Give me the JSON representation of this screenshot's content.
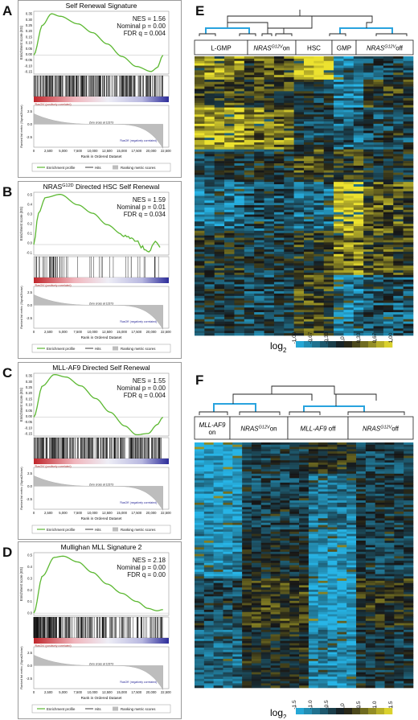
{
  "gsea_panels": [
    {
      "letter": "A",
      "title": "Self Renewal Signature",
      "title_sup": "",
      "title_rest": "",
      "stats": [
        "NES = 1.56",
        "Nominal p = 0.00",
        "FDR q = 0.004"
      ],
      "es_ticks": [
        "0.35",
        "0.30",
        "0.25",
        "0.20",
        "0.15",
        "0.10",
        "0.05",
        "0.00",
        "-0.05",
        "-0.10",
        "-0.15"
      ],
      "metric_ticks": [
        "2.5",
        "0.0",
        "-2.5"
      ],
      "x_ticks": [
        "0",
        "2,500",
        "5,000",
        "7,500",
        "10,000",
        "12,500",
        "15,000",
        "17,500",
        "20,000",
        "22,500"
      ],
      "pos_label": "'RasON' (positively correlated)",
      "neg_label": "'RasOff' (negatively correlated)",
      "zero_cross": "Zero cross at 12373",
      "xlabel": "Rank in Ordered Dataset",
      "es_ylabel": "Enrichment score (ES)",
      "metric_ylabel": "Ranked list metric (Signal2Noise)",
      "legend": [
        "Enrichment profile",
        "Hits",
        "Ranking metric scores"
      ],
      "es_curve": [
        [
          0,
          0
        ],
        [
          1500,
          0.24
        ],
        [
          3000,
          0.33
        ],
        [
          4500,
          0.31
        ],
        [
          7500,
          0.25
        ],
        [
          10000,
          0.18
        ],
        [
          12500,
          0.09
        ],
        [
          15000,
          -0.01
        ],
        [
          17500,
          -0.09
        ],
        [
          20000,
          -0.13
        ],
        [
          21000,
          -0.1
        ],
        [
          22000,
          0.0
        ]
      ],
      "ylim": [
        -0.15,
        0.35
      ],
      "hits": "dense"
    },
    {
      "letter": "B",
      "title": "NRAS",
      "title_sup": "G12D",
      "title_rest": " Directed HSC Self Renewal",
      "stats": [
        "NES = 1.59",
        "Nominal p = 0.01",
        "FDR q = 0.034"
      ],
      "es_ticks": [
        "0.5",
        "0.4",
        "0.3",
        "0.2",
        "0.1",
        "0.0",
        "-0.1"
      ],
      "metric_ticks": [
        "2.5",
        "0.0",
        "-2.5"
      ],
      "x_ticks": [
        "0",
        "2,500",
        "5,000",
        "7,500",
        "10,000",
        "12,500",
        "15,000",
        "17,500",
        "20,000",
        "22,500"
      ],
      "pos_label": "'RasON' (positively correlated)",
      "neg_label": "'RasOff' (negatively correlated)",
      "zero_cross": "Zero cross at 12373",
      "xlabel": "Rank in Ordered Dataset",
      "es_ylabel": "Enrichment score (ES)",
      "metric_ylabel": "Ranked list metric (Signal2Noise)",
      "legend": [
        "Enrichment profile",
        "Hits",
        "Ranking metric scores"
      ],
      "es_curve": [
        [
          0,
          0
        ],
        [
          800,
          0.3
        ],
        [
          2000,
          0.45
        ],
        [
          4500,
          0.48
        ],
        [
          7500,
          0.38
        ],
        [
          10000,
          0.3
        ],
        [
          12500,
          0.19
        ],
        [
          15000,
          0.1
        ],
        [
          17500,
          0.02
        ],
        [
          19500,
          -0.08
        ],
        [
          20500,
          0.02
        ],
        [
          21500,
          -0.02
        ]
      ],
      "ylim": [
        -0.1,
        0.5
      ],
      "hits": "sparse"
    },
    {
      "letter": "C",
      "title": "MLL-AF9 Directed Self Renewal",
      "title_sup": "",
      "title_rest": "",
      "stats": [
        "NES = 1.55",
        "Nominal p = 0.00",
        "FDR q = 0.004"
      ],
      "es_ticks": [
        "0.35",
        "0.30",
        "0.25",
        "0.20",
        "0.15",
        "0.10",
        "0.05",
        "0.00",
        "-0.05",
        "-0.10",
        "-0.15"
      ],
      "metric_ticks": [
        "2.5",
        "0.0",
        "-2.5"
      ],
      "x_ticks": [
        "0",
        "2,500",
        "5,000",
        "7,500",
        "10,000",
        "12,500",
        "15,000",
        "17,500",
        "20,000",
        "22,500"
      ],
      "pos_label": "'RasON' (positively correlated)",
      "neg_label": "'RasOff' (negatively correlated)",
      "zero_cross": "Zero cross at 12373",
      "xlabel": "Rank in Ordered Dataset",
      "es_ylabel": "Enrichment score (ES)",
      "metric_ylabel": "Ranked list metric (Signal2Noise)",
      "legend": [
        "Enrichment profile",
        "Hits",
        "Ranking metric scores"
      ],
      "es_curve": [
        [
          0,
          0
        ],
        [
          1500,
          0.25
        ],
        [
          3500,
          0.34
        ],
        [
          5500,
          0.32
        ],
        [
          8000,
          0.25
        ],
        [
          10500,
          0.15
        ],
        [
          13000,
          0.04
        ],
        [
          15500,
          -0.07
        ],
        [
          17500,
          -0.14
        ],
        [
          19500,
          -0.13
        ],
        [
          21000,
          -0.06
        ],
        [
          22000,
          0.0
        ]
      ],
      "ylim": [
        -0.15,
        0.35
      ],
      "hits": "dense"
    },
    {
      "letter": "D",
      "title": "Mullighan MLL Signature 2",
      "title_sup": "",
      "title_rest": "",
      "stats": [
        "NES = 2.18",
        "Nominal p = 0.00",
        "FDR q = 0.00"
      ],
      "es_ticks": [
        "0.5",
        "0.4",
        "0.3",
        "0.2",
        "0.1",
        "0.0"
      ],
      "metric_ticks": [
        "2.5",
        "0.0",
        "-2.5"
      ],
      "x_ticks": [
        "0",
        "2,500",
        "5,000",
        "7,500",
        "10,000",
        "12,500",
        "15,000",
        "17,500",
        "20,000",
        "22,500"
      ],
      "pos_label": "'RasON' (positively correlated)",
      "neg_label": "'RasOff' (negatively correlated)",
      "zero_cross": "Zero cross at 12373",
      "xlabel": "Rank in Ordered Dataset",
      "es_ylabel": "Enrichment score (ES)",
      "metric_ylabel": "Ranked list metric (Signal2Noise)",
      "legend": [
        "Enrichment profile",
        "Hits",
        "Ranking metric scores"
      ],
      "es_curve": [
        [
          0,
          0
        ],
        [
          1500,
          0.32
        ],
        [
          3500,
          0.48
        ],
        [
          5000,
          0.49
        ],
        [
          7500,
          0.44
        ],
        [
          10000,
          0.35
        ],
        [
          12500,
          0.25
        ],
        [
          15000,
          0.17
        ],
        [
          17500,
          0.1
        ],
        [
          19500,
          0.04
        ],
        [
          21000,
          0.02
        ],
        [
          22000,
          0.03
        ]
      ],
      "ylim": [
        -0.02,
        0.52
      ],
      "hits": "dense-left"
    }
  ],
  "heatmap_E": {
    "letter": "E",
    "groups": [
      {
        "label": "L-GMP",
        "italic": "",
        "sup": "",
        "tail": ""
      },
      {
        "label": "",
        "italic": "NRAS",
        "sup": "G12V",
        "tail": "on"
      },
      {
        "label": "HSC",
        "italic": "",
        "sup": "",
        "tail": ""
      },
      {
        "label": "GMP",
        "italic": "",
        "sup": "",
        "tail": ""
      },
      {
        "label": "",
        "italic": "NRAS",
        "sup": "G12V",
        "tail": "off"
      }
    ],
    "log_label": "log",
    "log_sub": "2",
    "scale": [
      "-1.00",
      "-0.67",
      "-0.33",
      "0",
      "0.33",
      "0.67",
      "1.00"
    ]
  },
  "heatmap_F": {
    "letter": "F",
    "groups": [
      {
        "italic": "MLL-AF9",
        "sup": "",
        "tail": " on"
      },
      {
        "italic": "NRAS",
        "sup": "G12V",
        "tail": "on"
      },
      {
        "italic": "MLL-AF9",
        "sup": "",
        "tail": " off"
      },
      {
        "italic": "NRAS",
        "sup": "G12V",
        "tail": "off"
      }
    ],
    "log_label": "log",
    "log_sub": "2",
    "scale": [
      "-1.5",
      "-1.0",
      "-0.5",
      "0",
      "0.5",
      "1.0",
      "1.5"
    ]
  },
  "colors": {
    "curve": "#5cb832",
    "dendro_highlight": "#29a3de",
    "heat_blue": "#27b4e6",
    "heat_yellow": "#ece22f"
  }
}
